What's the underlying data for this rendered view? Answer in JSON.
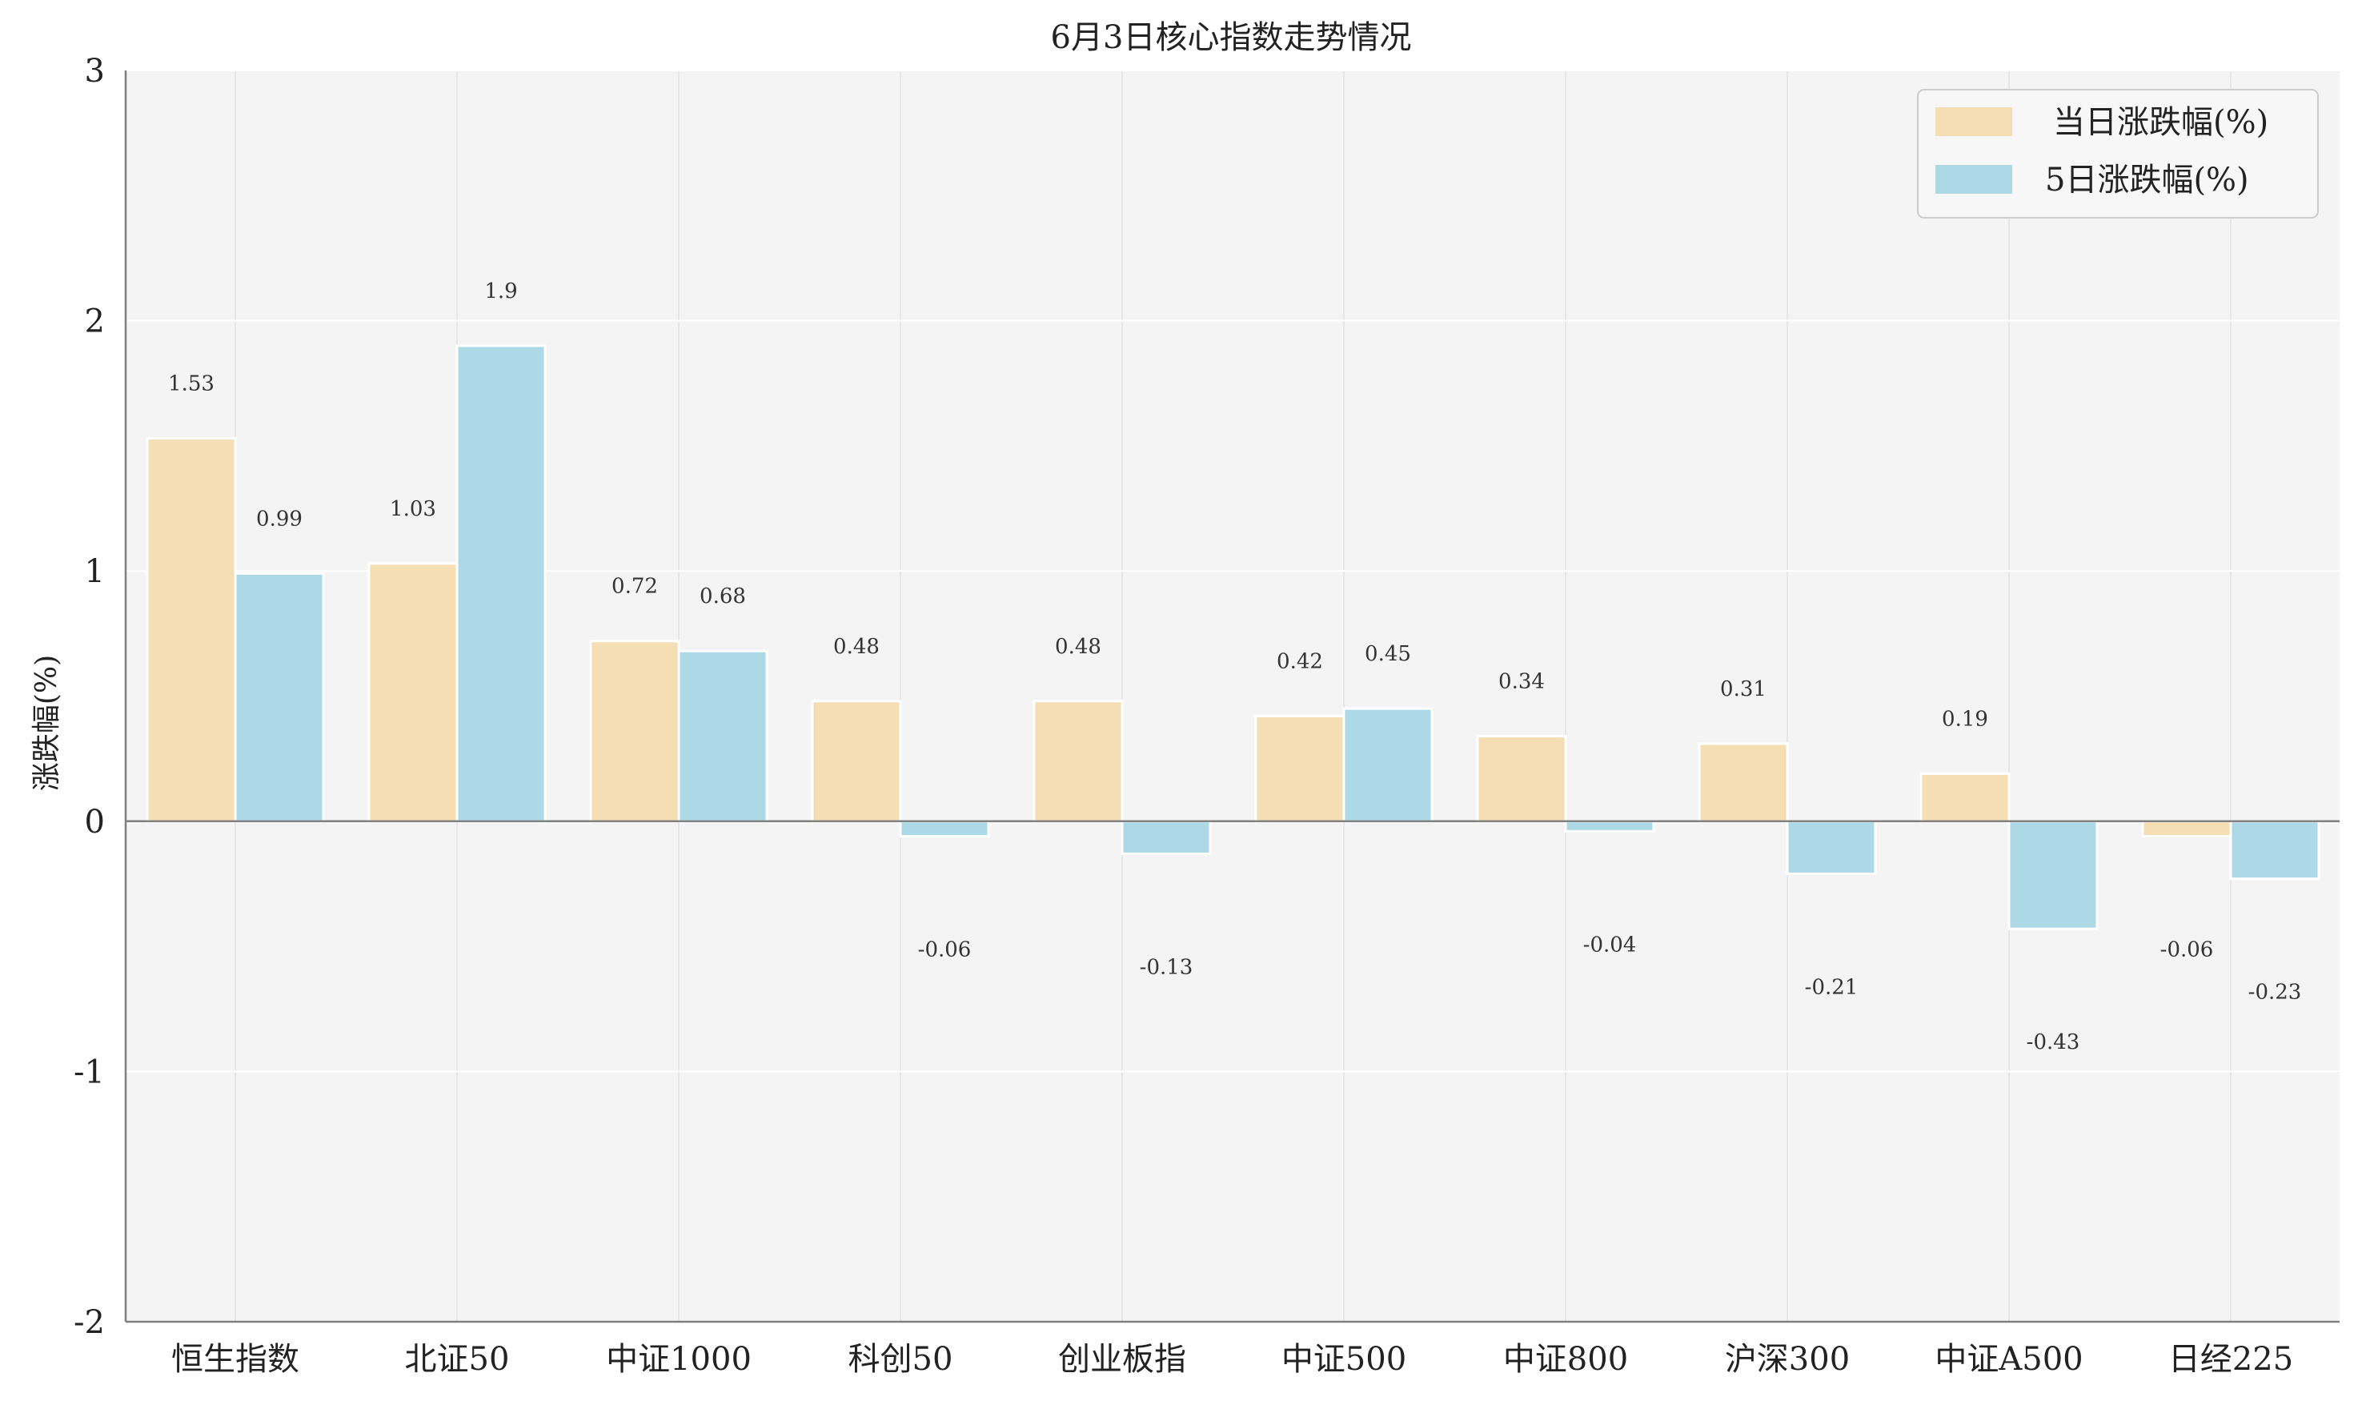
{
  "chart_data": {
    "type": "bar",
    "title": "6月3日核心指数走势情况",
    "xlabel": "",
    "ylabel": "涨跌幅(%)",
    "ylim": [
      -2,
      3
    ],
    "yticks": [
      "3",
      "2",
      "1",
      "0",
      "-1",
      "-2"
    ],
    "ytick_values": [
      3,
      2,
      1,
      0,
      -1,
      -2
    ],
    "categories": [
      "恒生指数",
      "北证50",
      "中证1000",
      "科创50",
      "创业板指",
      "中证500",
      "中证800",
      "沪深300",
      "中证A500",
      "日经225"
    ],
    "series": [
      {
        "name": "当日涨跌幅(%)",
        "color": "#f5deb3",
        "values": [
          1.53,
          1.03,
          0.72,
          0.48,
          0.48,
          0.42,
          0.34,
          0.31,
          0.19,
          -0.06
        ],
        "labels": [
          "1.53",
          "1.03",
          "0.72",
          "0.48",
          "0.48",
          "0.42",
          "0.34",
          "0.31",
          "0.19",
          "-0.06"
        ]
      },
      {
        "name": "5日涨跌幅(%)",
        "color": "#add8e6",
        "values": [
          0.99,
          1.9,
          0.68,
          -0.06,
          -0.13,
          0.45,
          -0.04,
          -0.21,
          -0.43,
          -0.23
        ],
        "labels": [
          "0.99",
          "1.9",
          "0.68",
          "-0.06",
          "-0.13",
          "0.45",
          "-0.04",
          "-0.21",
          "-0.43",
          "-0.23"
        ]
      }
    ],
    "grid": true,
    "legend_position": "top-right",
    "plot_background": "#f4f4f4",
    "grid_color": "#ffffff",
    "vgrid_color": "#e6e6e6",
    "zero_line_color": "#808080",
    "axis_color": "#808080"
  }
}
